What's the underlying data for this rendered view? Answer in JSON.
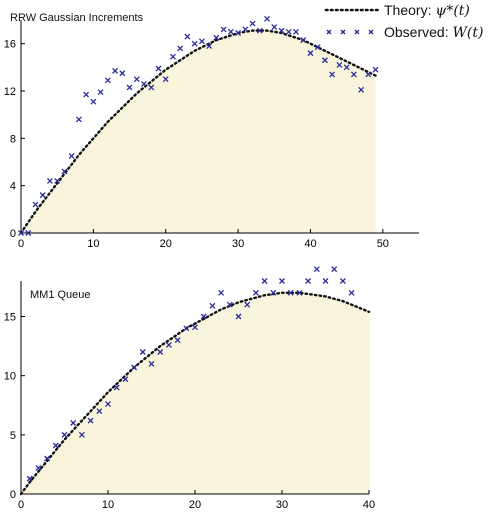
{
  "legend": {
    "theory": {
      "label": "Theory:",
      "math": "ψ*(t)"
    },
    "observed": {
      "label": "Observed:",
      "math": "W(t)"
    }
  },
  "colors": {
    "fill": "#f8f5dc",
    "theory": "#111111",
    "observed": "#2b2b9a",
    "axis": "#000000"
  },
  "chart_data": [
    {
      "type": "line",
      "title": "RRW Gaussian Increments",
      "xlabel": "",
      "ylabel": "",
      "xlim": [
        0,
        55
      ],
      "ylim": [
        0,
        18
      ],
      "xticks": [
        0,
        10,
        20,
        30,
        40,
        50
      ],
      "yticks": [
        0,
        4,
        8,
        12,
        16
      ],
      "series": [
        {
          "name": "Theory: ψ*(t)",
          "style": "dotted-fill",
          "x": [
            0,
            1,
            2,
            3,
            4,
            5,
            6,
            7,
            8,
            9,
            10,
            11,
            12,
            13,
            14,
            15,
            16,
            17,
            18,
            19,
            20,
            21,
            22,
            23,
            24,
            25,
            26,
            27,
            28,
            29,
            30,
            31,
            32,
            33,
            34,
            35,
            36,
            37,
            38,
            39,
            40,
            41,
            42,
            43,
            44,
            45,
            46,
            47,
            48,
            49
          ],
          "y": [
            0,
            0.9,
            1.8,
            2.6,
            3.4,
            4.2,
            5,
            5.8,
            6.6,
            7.3,
            8,
            8.7,
            9.4,
            10,
            10.6,
            11.2,
            11.8,
            12.3,
            12.8,
            13.3,
            13.8,
            14.2,
            14.6,
            15,
            15.4,
            15.7,
            16,
            16.3,
            16.5,
            16.7,
            16.9,
            17,
            17.1,
            17.1,
            17.1,
            17,
            16.9,
            16.7,
            16.5,
            16.3,
            16,
            15.7,
            15.4,
            15.1,
            14.8,
            14.5,
            14.2,
            13.9,
            13.6,
            13.3
          ]
        },
        {
          "name": "Observed: W(t)",
          "style": "x-marker",
          "x": [
            0,
            1,
            2,
            3,
            4,
            5,
            6,
            7,
            8,
            9,
            10,
            11,
            12,
            13,
            14,
            15,
            16,
            17,
            18,
            19,
            20,
            21,
            22,
            23,
            24,
            25,
            26,
            27,
            28,
            29,
            30,
            31,
            32,
            33,
            34,
            35,
            36,
            37,
            38,
            39,
            40,
            41,
            42,
            43,
            44,
            45,
            46,
            47,
            48,
            49
          ],
          "y": [
            0,
            0,
            2.4,
            3.2,
            4.4,
            4.4,
            5.2,
            6.5,
            9.6,
            11.7,
            11.1,
            11.9,
            12.9,
            13.7,
            13.5,
            12.3,
            13,
            12.6,
            12.3,
            13.9,
            13,
            14.9,
            15.6,
            16.6,
            16,
            16.2,
            15.8,
            16.5,
            17.2,
            17,
            16.9,
            17.2,
            17.7,
            17.1,
            18.1,
            17.4,
            17.1,
            17,
            17,
            16.3,
            15.2,
            15.7,
            14.6,
            13.4,
            14.2,
            14,
            13.4,
            12.1,
            13.4,
            13.8
          ]
        }
      ]
    },
    {
      "type": "line",
      "title": "MM1 Queue",
      "xlabel": "",
      "ylabel": "",
      "xlim": [
        0,
        40
      ],
      "ylim": [
        0,
        18
      ],
      "xticks": [
        0,
        10,
        20,
        30,
        40
      ],
      "yticks": [
        0,
        5,
        10,
        15
      ],
      "series": [
        {
          "name": "Theory: ψ*(t)",
          "style": "dotted-fill",
          "x": [
            0,
            1,
            2,
            3,
            4,
            5,
            6,
            7,
            8,
            9,
            10,
            11,
            12,
            13,
            14,
            15,
            16,
            17,
            18,
            19,
            20,
            21,
            22,
            23,
            24,
            25,
            26,
            27,
            28,
            29,
            30,
            31,
            32,
            33,
            34,
            35,
            36,
            37,
            38,
            39,
            40
          ],
          "y": [
            0,
            1,
            1.9,
            2.8,
            3.7,
            4.6,
            5.4,
            6.2,
            7,
            7.8,
            8.6,
            9.3,
            10,
            10.7,
            11.3,
            11.9,
            12.5,
            13,
            13.5,
            14,
            14.4,
            14.8,
            15.2,
            15.6,
            15.9,
            16.2,
            16.4,
            16.6,
            16.8,
            16.9,
            17,
            17,
            17,
            16.9,
            16.8,
            16.7,
            16.5,
            16.3,
            16,
            15.7,
            15.4
          ]
        },
        {
          "name": "Observed: W(t)",
          "style": "x-marker",
          "x": [
            1,
            2,
            3,
            4,
            5,
            6,
            7,
            8,
            9,
            10,
            11,
            12,
            13,
            14,
            15,
            16,
            17,
            18,
            19,
            20,
            21,
            22,
            23,
            24,
            25,
            26,
            27,
            28,
            29,
            30,
            31,
            32,
            33,
            34,
            35,
            36,
            37,
            38
          ],
          "y": [
            1.3,
            2.2,
            3,
            4.1,
            5,
            6,
            5,
            6.2,
            7,
            7.6,
            9,
            9.7,
            10.7,
            12,
            11,
            12,
            12.6,
            13,
            14,
            14.1,
            15,
            15.9,
            17,
            16,
            15,
            16,
            17,
            18,
            17,
            18,
            17,
            17,
            18,
            19,
            18,
            19,
            18,
            17
          ]
        }
      ]
    }
  ]
}
